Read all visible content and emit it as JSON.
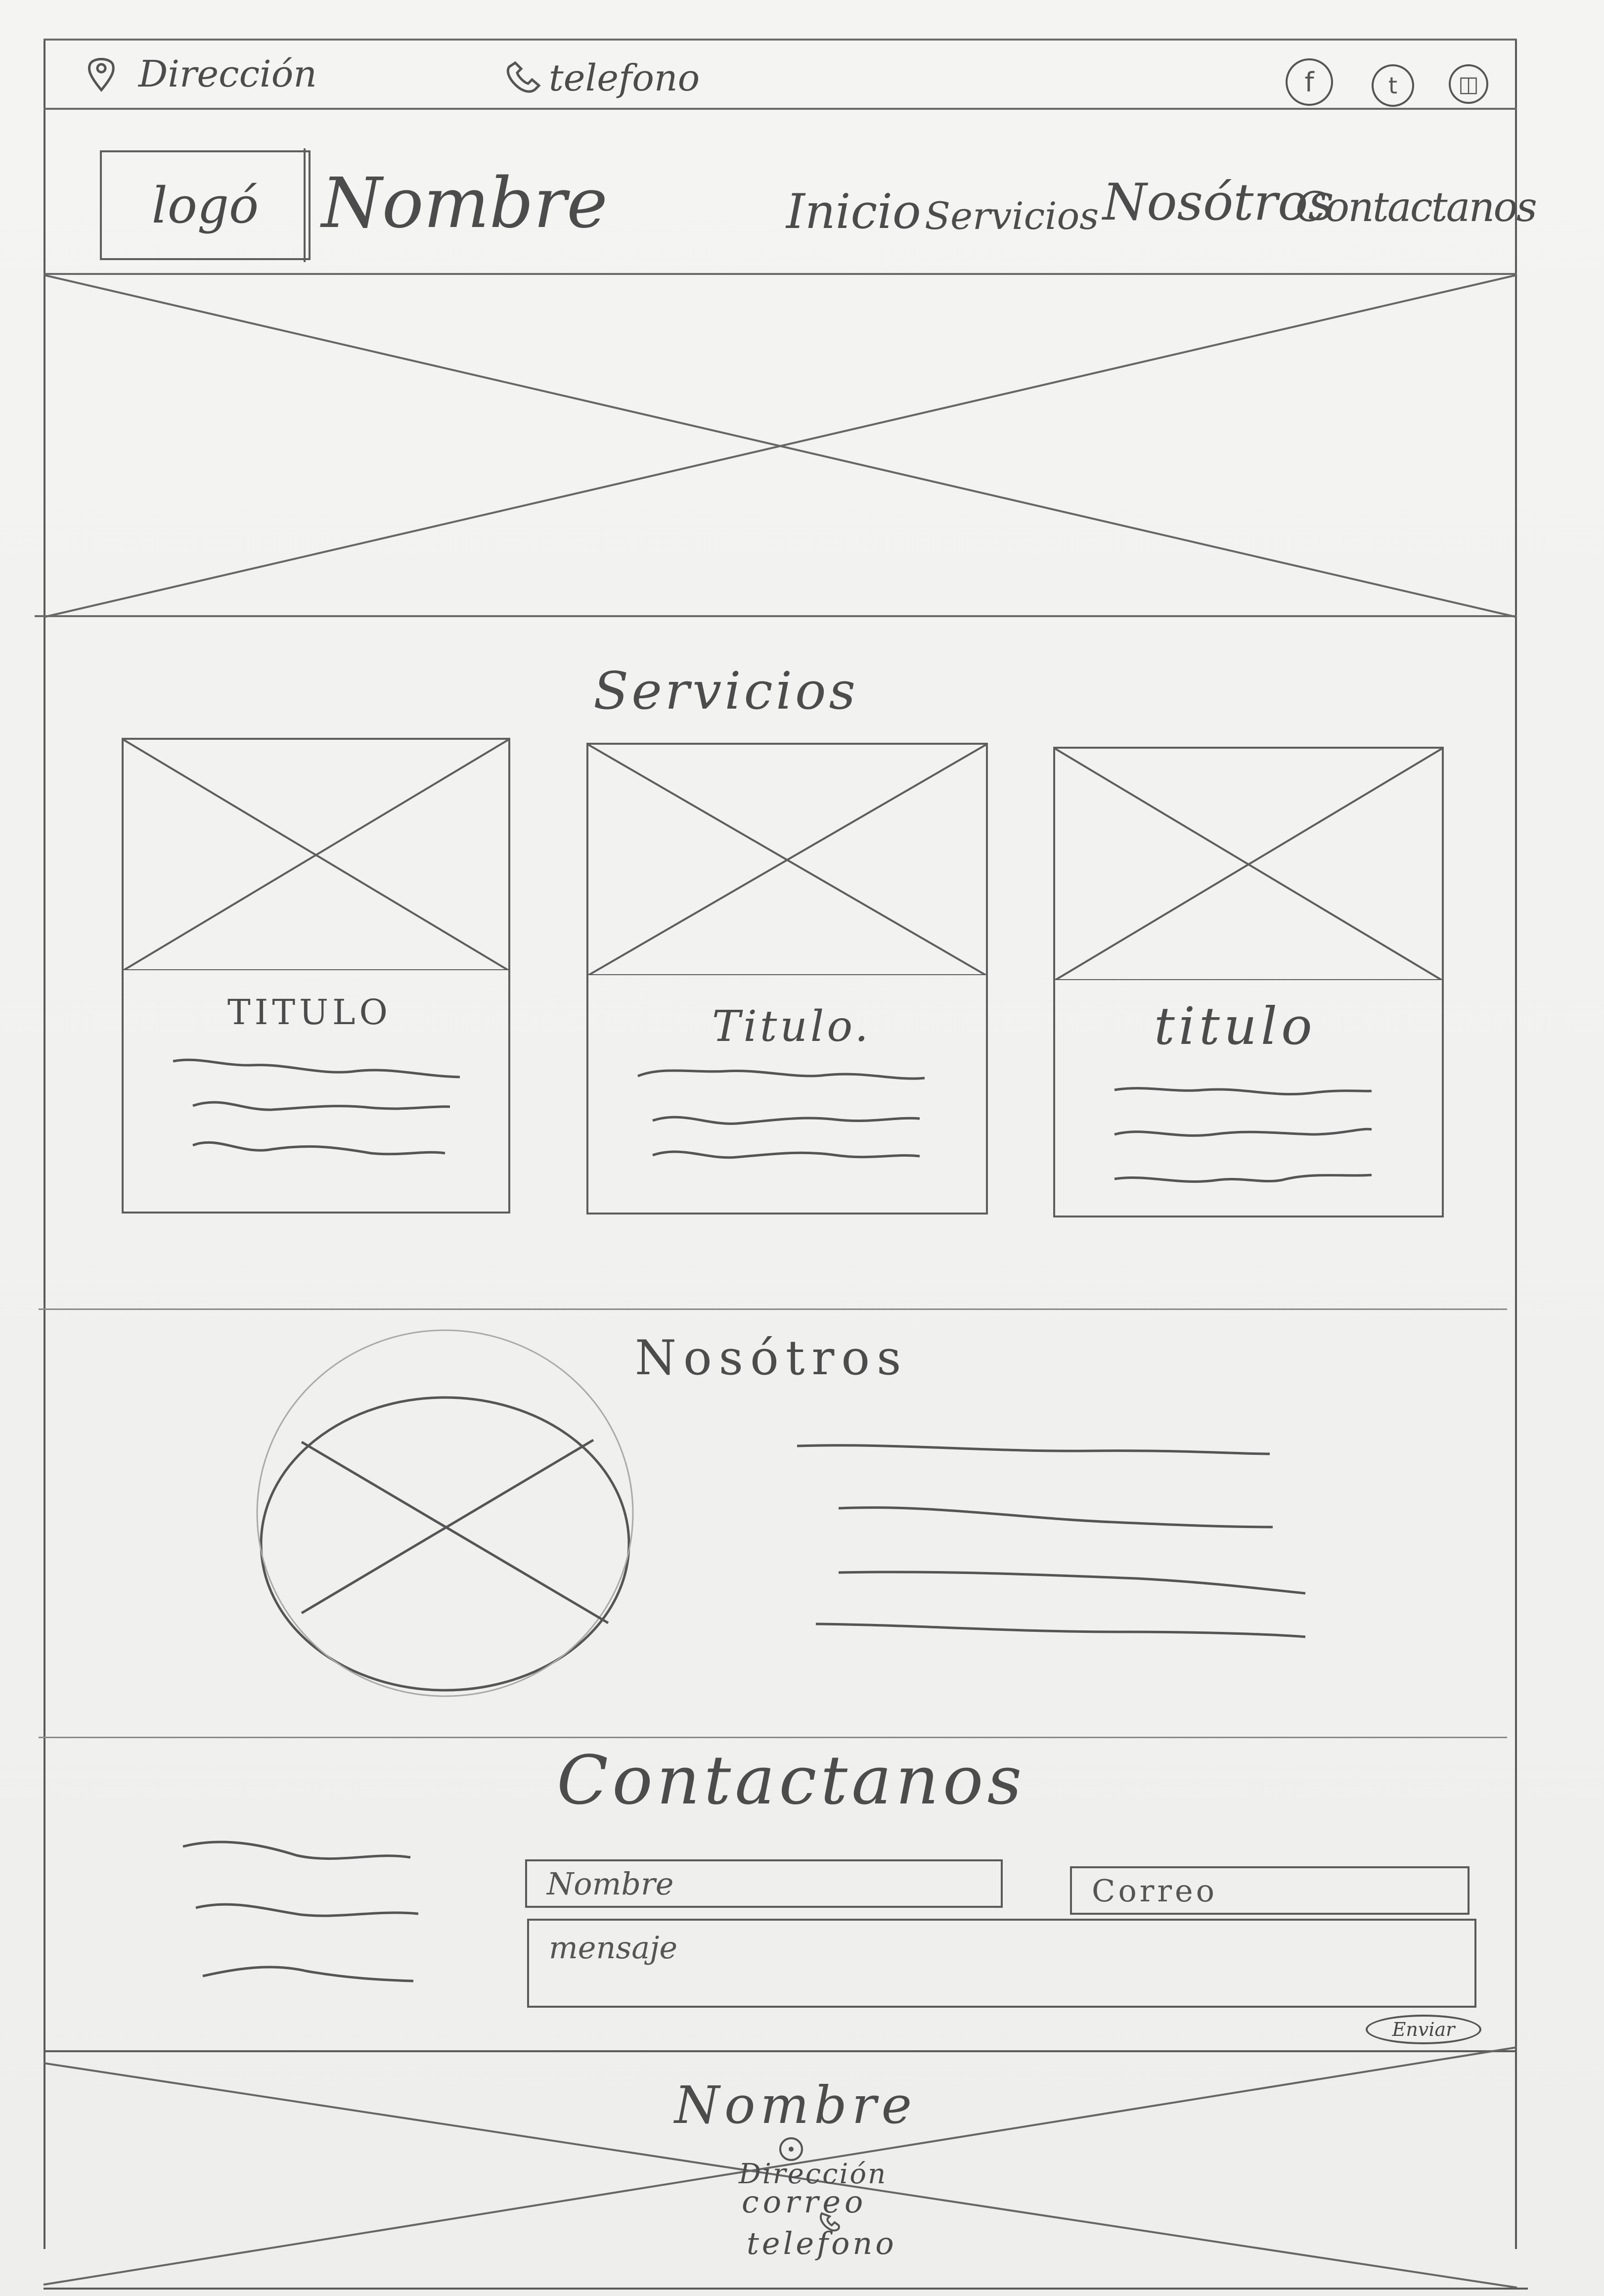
{
  "topbar": {
    "address_label": "Dirección",
    "phone_label": "telefono",
    "icons": [
      "facebook-icon",
      "twitter-icon",
      "instagram-icon"
    ],
    "icon_glyphs": [
      "f",
      "t",
      "◫"
    ]
  },
  "header": {
    "logo_label": "logó",
    "brand_name": "Nombre",
    "nav": [
      "Inicio",
      "Servicios",
      "Nosótros",
      "Contactanos"
    ]
  },
  "services": {
    "heading": "Servicios",
    "cards": [
      {
        "title": "TITULO"
      },
      {
        "title": "Titulo."
      },
      {
        "title": "titulo"
      }
    ]
  },
  "about": {
    "heading": "Nosótros"
  },
  "contact": {
    "heading": "Contactanos",
    "name_placeholder": "Nombre",
    "email_placeholder": "Correo",
    "message_placeholder": "mensaje",
    "submit_label": "Enviar"
  },
  "footer": {
    "name": "Nombre",
    "address": "Dirección",
    "email": "correo",
    "phone": "telefono"
  },
  "colors": {
    "paper": "#f2f2f0",
    "pencil": "#555555",
    "pencil_light": "#8a8a8a"
  }
}
